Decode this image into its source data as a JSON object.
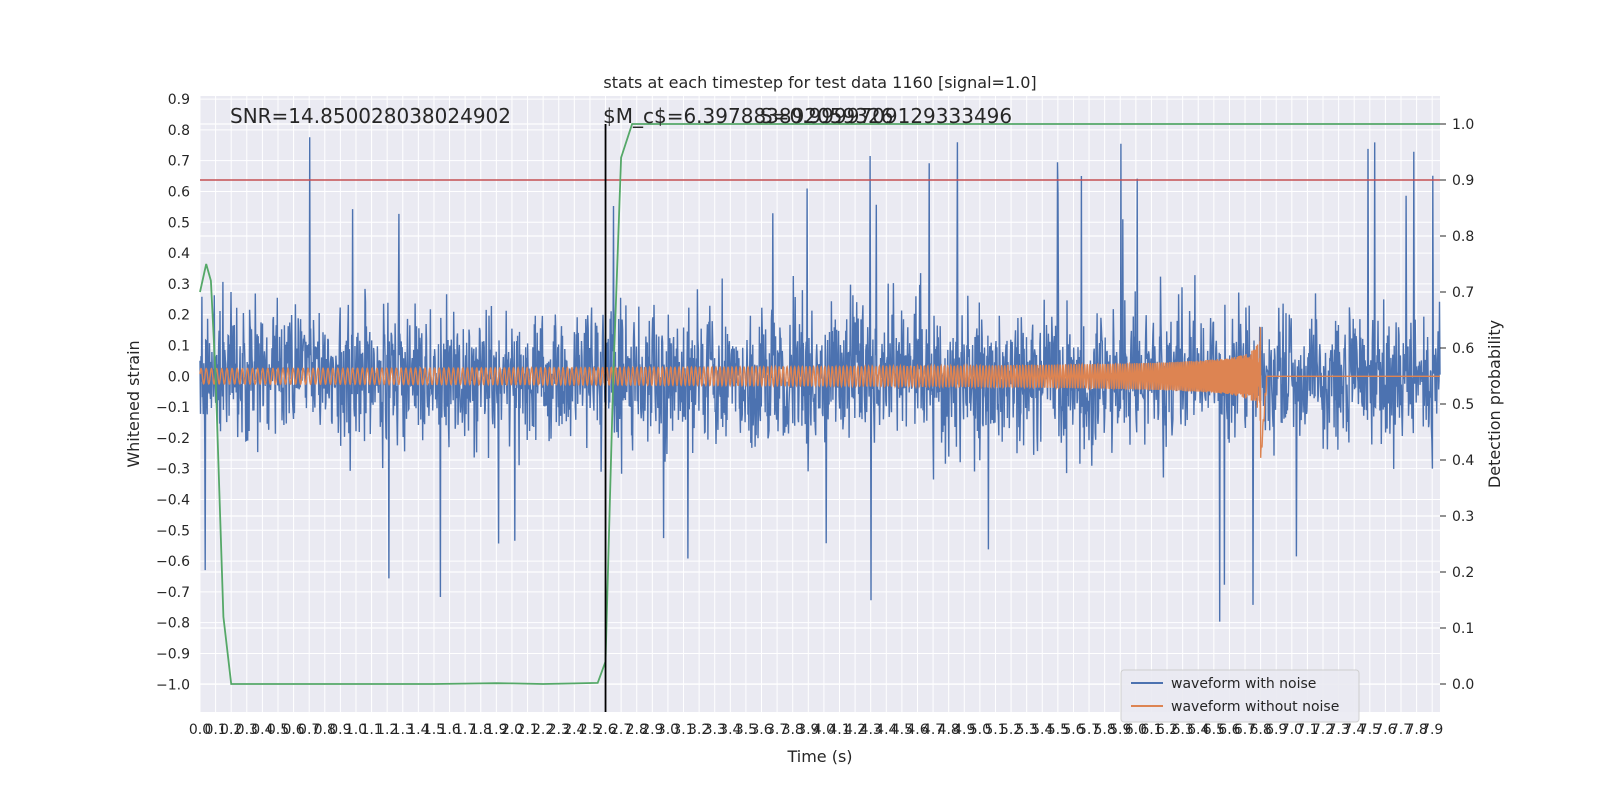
{
  "chart_data": {
    "type": "line",
    "title": "stats at each timestep for test data 1160 [signal=1.0]",
    "xlabel": "Time (s)",
    "ylabel": "Whitened strain",
    "y2label": "Detection probability",
    "xlim": [
      0.0,
      7.95
    ],
    "ylim": [
      -1.09,
      0.91
    ],
    "y2lim": [
      -0.05,
      1.05
    ],
    "x_ticks": [
      0.0,
      0.1,
      0.2,
      0.3,
      0.4,
      0.5,
      0.6,
      0.7,
      0.8,
      0.9,
      1.0,
      1.1,
      1.2,
      1.3,
      1.4,
      1.5,
      1.6,
      1.7,
      1.8,
      1.9,
      2.0,
      2.1,
      2.2,
      2.3,
      2.4,
      2.5,
      2.6,
      2.7,
      2.8,
      2.9,
      3.0,
      3.1,
      3.2,
      3.3,
      3.4,
      3.5,
      3.6,
      3.7,
      3.8,
      3.9,
      4.0,
      4.1,
      4.2,
      4.3,
      4.4,
      4.5,
      4.6,
      4.7,
      4.8,
      4.9,
      5.0,
      5.1,
      5.2,
      5.3,
      5.4,
      5.5,
      5.6,
      5.7,
      5.8,
      5.9,
      6.0,
      6.1,
      6.2,
      6.3,
      6.4,
      6.5,
      6.6,
      6.7,
      6.8,
      6.9,
      7.0,
      7.1,
      7.2,
      7.3,
      7.4,
      7.5,
      7.6,
      7.7,
      7.8,
      7.9
    ],
    "y_ticks": [
      -1.0,
      -0.9,
      -0.8,
      -0.7,
      -0.6,
      -0.5,
      -0.4,
      -0.3,
      -0.2,
      -0.1,
      0.0,
      0.1,
      0.2,
      0.3,
      0.4,
      0.5,
      0.6,
      0.7,
      0.8,
      0.9
    ],
    "y2_ticks": [
      0.0,
      0.1,
      0.2,
      0.3,
      0.4,
      0.5,
      0.6,
      0.7,
      0.8,
      0.9,
      1.0
    ],
    "grid": true,
    "legend_position": "lower-right",
    "annotations": {
      "snr": "SNR=14.850028038024902",
      "mc": "$M_c$=6.397883892059326",
      "overlap": "S=0.9999709129333496"
    },
    "vertical_line_x": 2.6,
    "threshold_probability": 0.9,
    "series": [
      {
        "name": "waveform with noise",
        "color": "#4c72b0",
        "description_of_values": "whitened noisy strain, roughly within ±0.5 with peaks near ±0.8",
        "y_range": [
          -1.0,
          0.82
        ]
      },
      {
        "name": "waveform without noise",
        "color": "#dd8452",
        "chirp": {
          "start_x": 0.0,
          "merger_x": 6.8,
          "end_x": 7.95,
          "start_amplitude": 0.025,
          "peak_amplitude": 0.4,
          "min_at_merger": -0.27
        }
      },
      {
        "name": "detection probability",
        "axis": "right",
        "color": "#55a868",
        "x": [
          0.0,
          0.04,
          0.07,
          0.1,
          0.15,
          0.2,
          0.3,
          0.5,
          0.8,
          1.0,
          1.2,
          1.5,
          1.8,
          1.9,
          2.0,
          2.2,
          2.4,
          2.55,
          2.6,
          2.65,
          2.7,
          2.77,
          8.0
        ],
        "y": [
          0.7,
          0.75,
          0.72,
          0.55,
          0.12,
          0.0,
          0.0,
          0.0,
          0.0,
          0.0,
          0.0,
          0.0,
          0.001,
          0.0015,
          0.001,
          0.0,
          0.001,
          0.002,
          0.04,
          0.55,
          0.94,
          1.0,
          1.0
        ]
      }
    ]
  }
}
